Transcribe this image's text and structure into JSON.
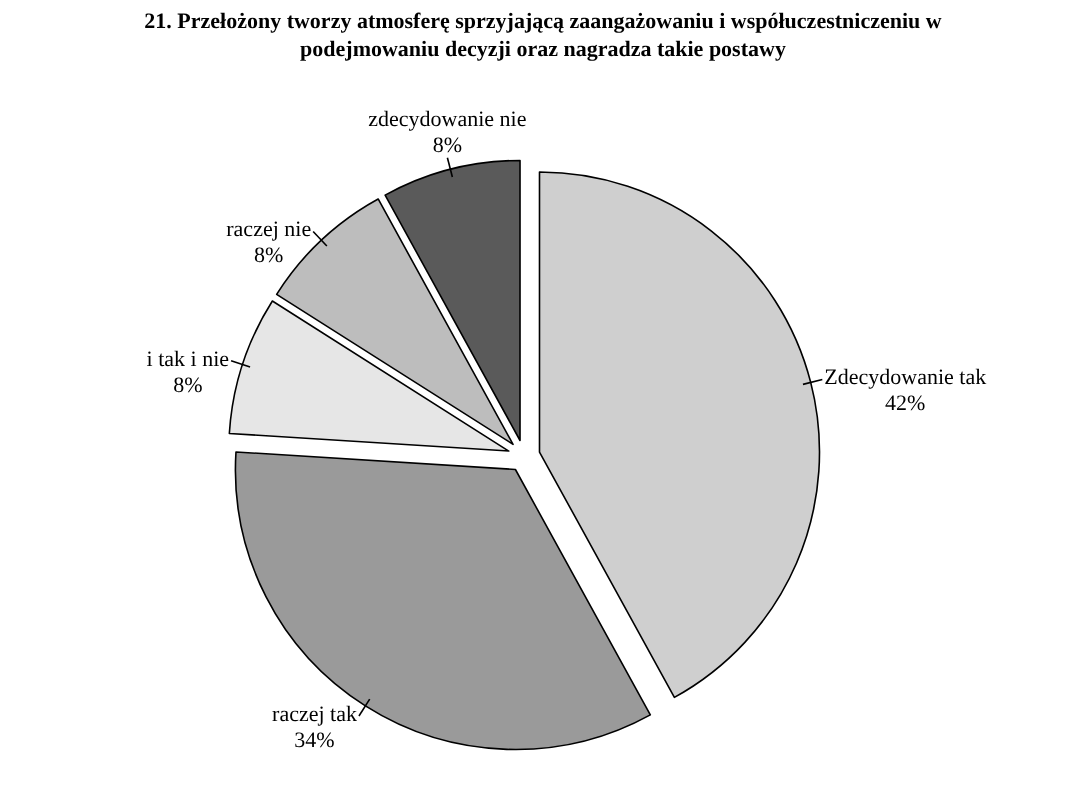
{
  "chart_data": {
    "type": "pie",
    "title": "21. Przełożony tworzy atmosferę sprzyjającą zaangażowaniu i współuczestniczeniu w podejmowaniu decyzji oraz nagradza takie postawy",
    "categories": [
      "Zdecydowanie tak",
      "raczej tak",
      "i tak i nie",
      "raczej nie",
      "zdecydowanie nie"
    ],
    "values": [
      42,
      34,
      8,
      8,
      8
    ],
    "value_labels": [
      "42%",
      "34%",
      "8%",
      "8%",
      "8%"
    ],
    "colors": [
      "#cfcfcf",
      "#9a9a9a",
      "#e6e6e6",
      "#bdbdbd",
      "#5a5a5a"
    ]
  }
}
